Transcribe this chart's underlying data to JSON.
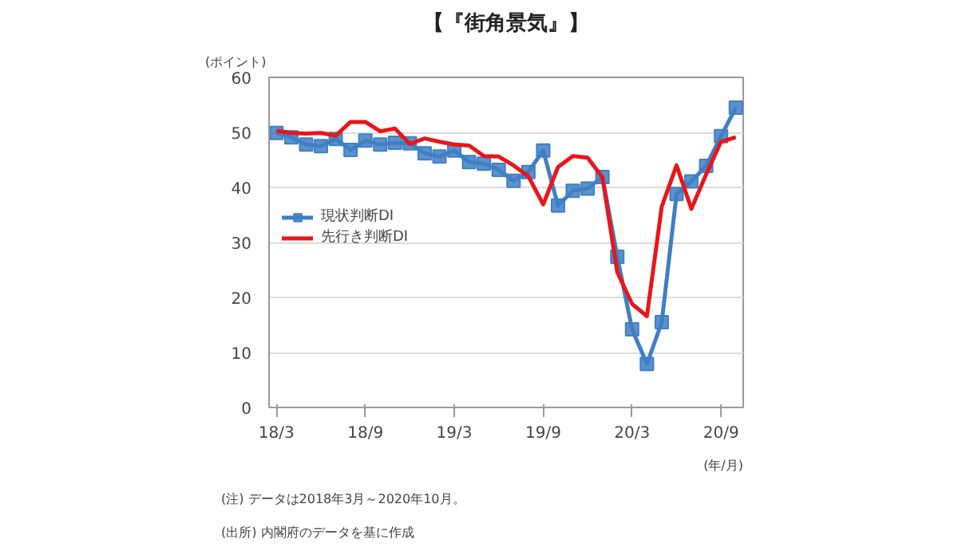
{
  "chart_data": {
    "type": "line",
    "title": "【『街角景気』】",
    "ylabel": "(ポイント)",
    "xlabel": "(年/月)",
    "categories": [
      "18/3",
      null,
      null,
      null,
      null,
      null,
      "18/9",
      null,
      null,
      null,
      null,
      null,
      "19/3",
      null,
      null,
      null,
      null,
      null,
      "19/9",
      null,
      null,
      null,
      null,
      null,
      "20/3",
      null,
      null,
      null,
      null,
      null,
      "20/9",
      null
    ],
    "series": [
      {
        "name": "現状判断DI",
        "color": "#3f7fc4",
        "marker": "square",
        "values": [
          49.9,
          49.1,
          47.8,
          47.5,
          48.8,
          46.8,
          48.5,
          47.8,
          48.1,
          48.0,
          46.2,
          45.6,
          46.7,
          44.6,
          44.3,
          43.2,
          41.2,
          42.8,
          46.7,
          36.7,
          39.4,
          39.8,
          41.9,
          27.4,
          14.2,
          7.9,
          15.5,
          38.8,
          41.1,
          43.9,
          49.3,
          54.5
        ]
      },
      {
        "name": "先行き判断DI",
        "color": "#e8161b",
        "values": [
          50.3,
          49.9,
          49.8,
          49.9,
          49.4,
          51.9,
          51.9,
          50.2,
          50.7,
          47.9,
          48.9,
          48.3,
          47.8,
          47.6,
          45.7,
          45.6,
          44.0,
          42.0,
          36.9,
          43.7,
          45.7,
          45.4,
          41.8,
          24.6,
          18.8,
          16.6,
          36.5,
          44.0,
          36.1,
          42.4,
          48.3,
          49.1
        ]
      }
    ],
    "ylim": [
      0,
      60
    ],
    "yticks": [
      0,
      10,
      20,
      30,
      40,
      50,
      60
    ],
    "grid": "y",
    "legend": "left",
    "line_style": "solid",
    "annotations": [
      "(注) データは2018年3月～2020年10月。",
      "(出所) 内閣府のデータを基に作成"
    ]
  }
}
